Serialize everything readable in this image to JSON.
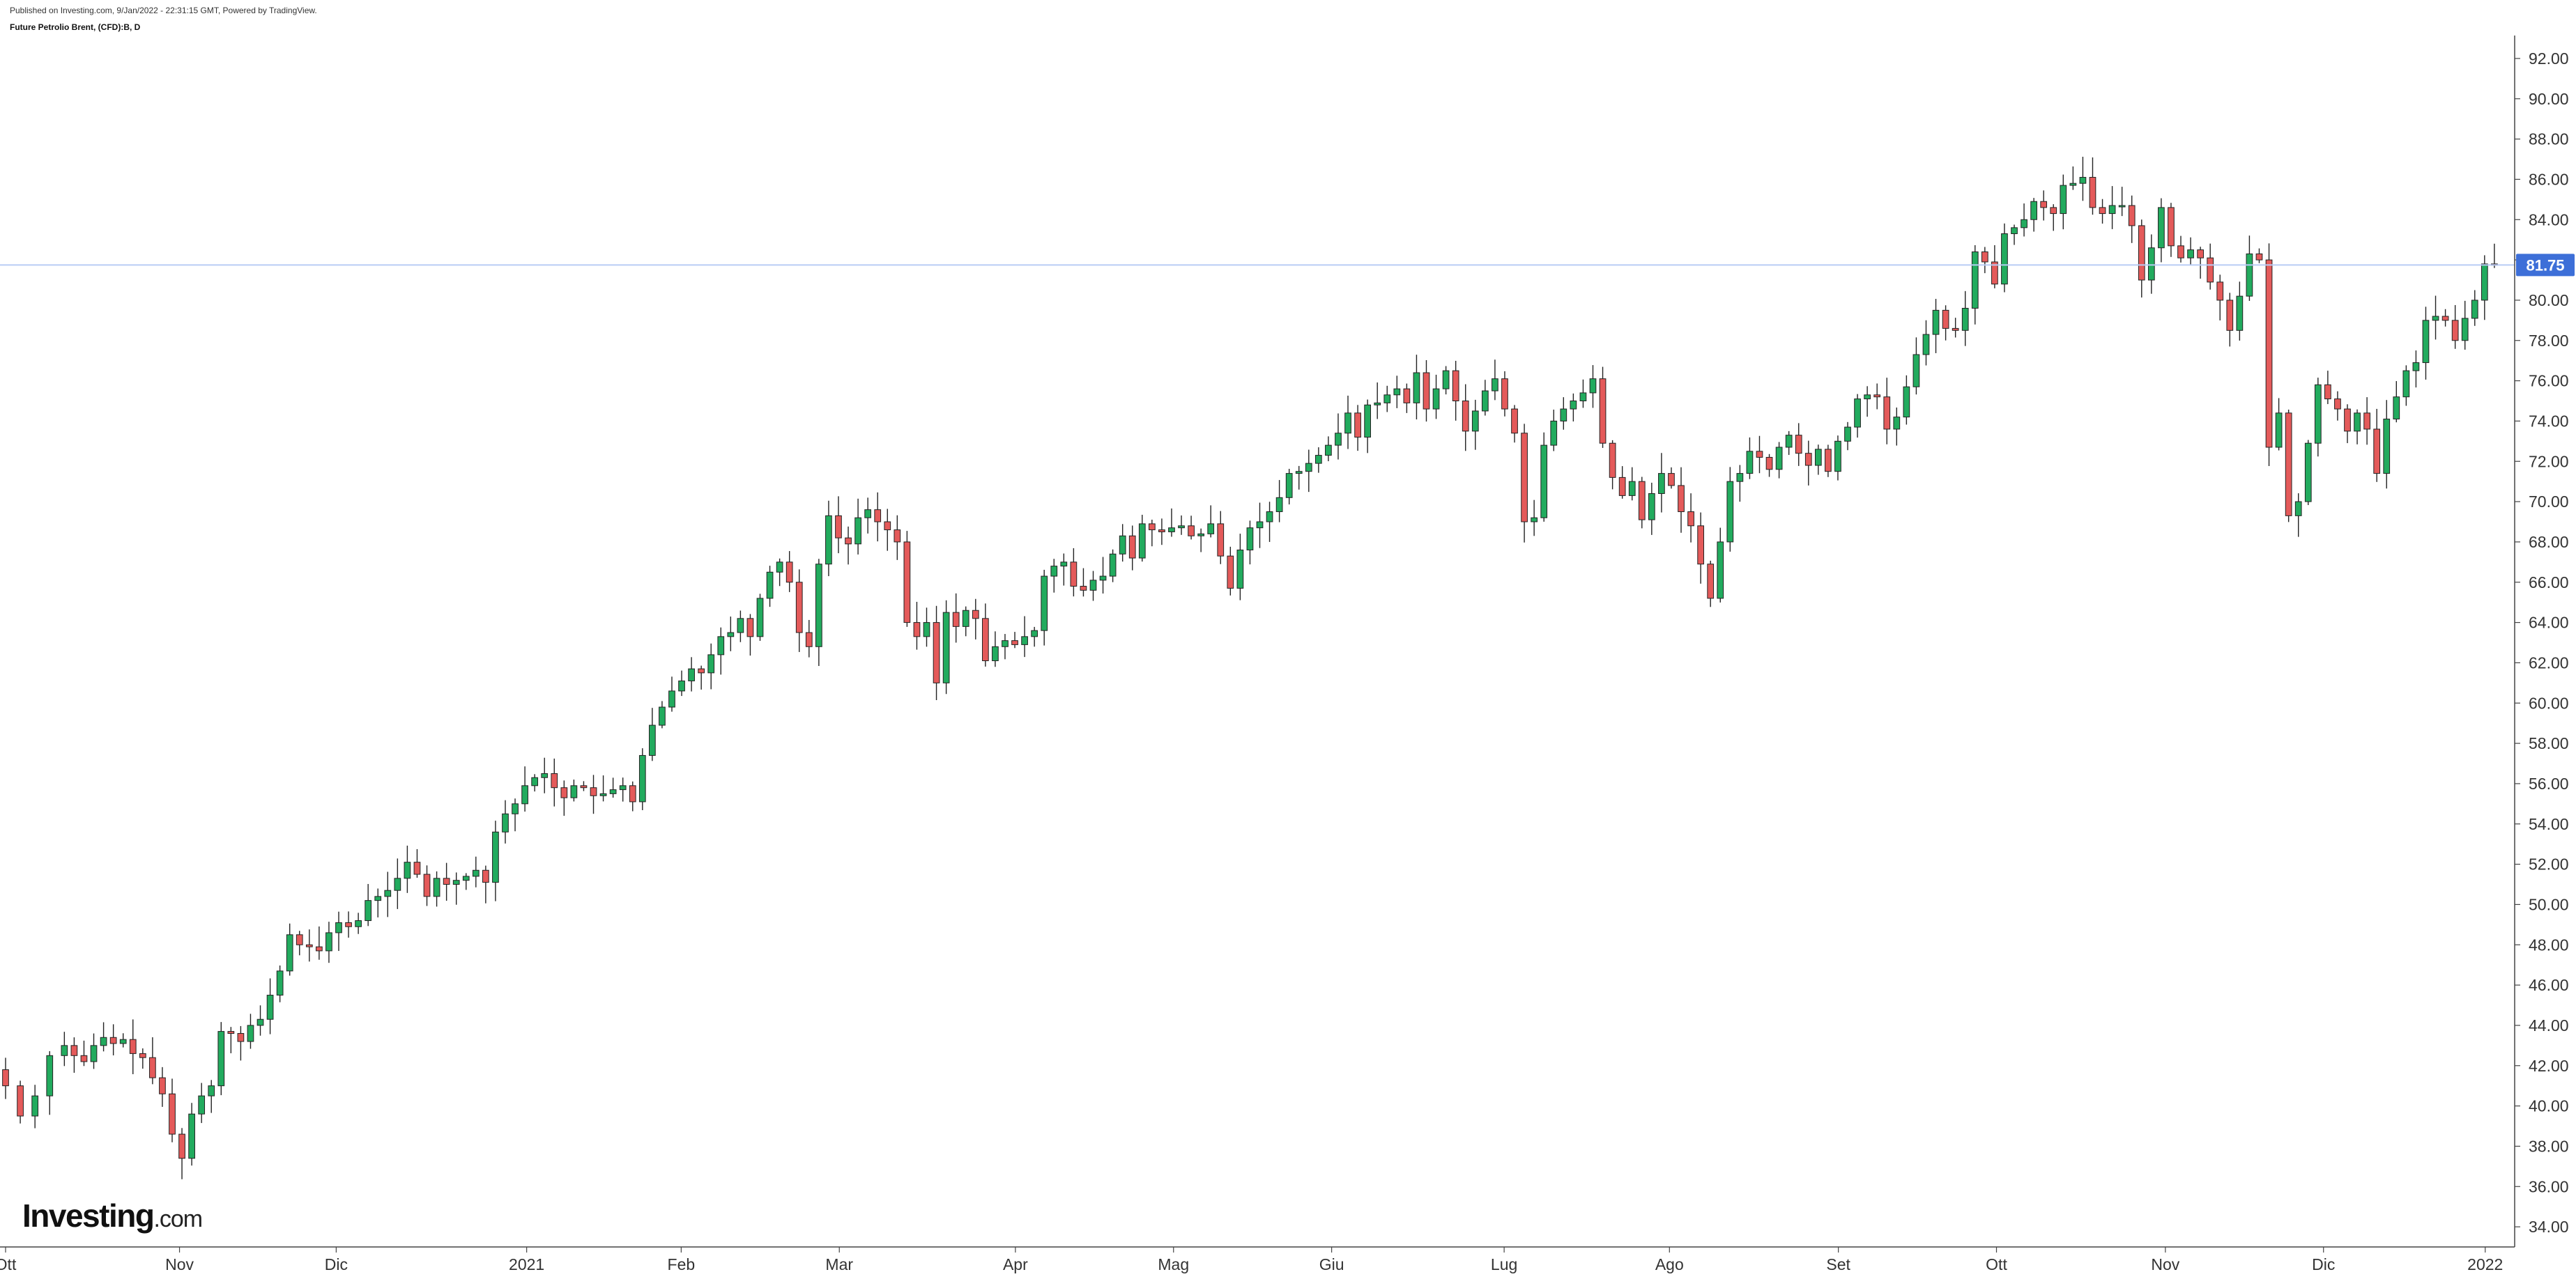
{
  "header": {
    "published": "Published on Investing.com, 9/Jan/2022 - 22:31:15 GMT, Powered by TradingView.",
    "symbol": "Future Petrolio Brent, (CFD):B, D"
  },
  "logo": {
    "brand": "Investing",
    "suffix": ".com"
  },
  "colors": {
    "up": "#22ab5e",
    "down": "#e45a5a",
    "wick": "#222222",
    "price_line": "#b9ccf5",
    "price_label": "#3d6fd8"
  },
  "chart_data": {
    "type": "candlestick",
    "title": "",
    "xlabel": "",
    "ylabel": "",
    "ylim": [
      33.0,
      93.0
    ],
    "yticks": [
      "34.00",
      "36.00",
      "38.00",
      "40.00",
      "42.00",
      "44.00",
      "46.00",
      "48.00",
      "50.00",
      "52.00",
      "54.00",
      "56.00",
      "58.00",
      "60.00",
      "62.00",
      "64.00",
      "66.00",
      "68.00",
      "70.00",
      "72.00",
      "74.00",
      "76.00",
      "78.00",
      "80.00",
      "82.00",
      "84.00",
      "86.00",
      "88.00",
      "90.00",
      "92.00"
    ],
    "xticks": [
      "Ott",
      "Nov",
      "Dic",
      "2021",
      "Feb",
      "Mar",
      "Apr",
      "Mag",
      "Giu",
      "Lug",
      "Ago",
      "Set",
      "Ott",
      "Nov",
      "Dic",
      "2022"
    ],
    "current_price": {
      "value": 81.75,
      "label": "81.75"
    },
    "series": [
      {
        "values": [
          [
            -3.0,
            41.0
          ],
          [
            -1.5,
            39.5
          ],
          [
            0.0,
            40.5
          ],
          [
            1.5,
            42.5
          ],
          [
            3.0,
            43.0
          ],
          [
            4.0,
            42.5
          ],
          [
            5.0,
            42.2
          ],
          [
            6.0,
            43.0
          ],
          [
            7.0,
            43.4
          ],
          [
            8.0,
            43.1
          ],
          [
            9.0,
            43.3
          ],
          [
            10.0,
            42.6
          ],
          [
            11.0,
            42.4
          ],
          [
            12.0,
            41.4
          ],
          [
            13.0,
            40.6
          ],
          [
            14.0,
            38.6
          ],
          [
            15.0,
            37.4
          ],
          [
            16.0,
            39.6
          ],
          [
            17.0,
            40.5
          ],
          [
            18.0,
            41.0
          ],
          [
            19.0,
            43.7
          ],
          [
            20.0,
            43.6
          ],
          [
            21.0,
            43.2
          ],
          [
            22.0,
            44.0
          ],
          [
            23.0,
            44.3
          ],
          [
            24.0,
            45.5
          ],
          [
            25.0,
            46.7
          ],
          [
            26.0,
            48.5
          ],
          [
            27.0,
            48.0
          ],
          [
            28.0,
            47.9
          ],
          [
            29.0,
            47.7
          ],
          [
            30.0,
            48.6
          ],
          [
            31.0,
            49.1
          ],
          [
            32.0,
            48.9
          ],
          [
            33.0,
            49.2
          ],
          [
            34.0,
            50.2
          ],
          [
            35.0,
            50.4
          ],
          [
            36.0,
            50.7
          ],
          [
            37.0,
            51.3
          ],
          [
            38.0,
            52.1
          ],
          [
            39.0,
            51.5
          ],
          [
            40.0,
            50.4
          ],
          [
            41.0,
            51.3
          ],
          [
            42.0,
            51.0
          ],
          [
            43.0,
            51.2
          ],
          [
            44.0,
            51.4
          ],
          [
            45.0,
            51.7
          ],
          [
            46.0,
            51.1
          ],
          [
            47.0,
            53.6
          ],
          [
            48.0,
            54.5
          ],
          [
            49.0,
            55.0
          ],
          [
            50.0,
            55.9
          ],
          [
            51.0,
            56.3
          ],
          [
            52.0,
            56.5
          ],
          [
            53.0,
            55.8
          ],
          [
            54.0,
            55.3
          ],
          [
            55.0,
            55.9
          ],
          [
            56.0,
            55.8
          ],
          [
            57.0,
            55.4
          ],
          [
            58.0,
            55.5
          ],
          [
            59.0,
            55.7
          ],
          [
            60.0,
            55.9
          ],
          [
            61.0,
            55.1
          ],
          [
            62.0,
            57.4
          ],
          [
            63.0,
            58.9
          ],
          [
            64.0,
            59.8
          ],
          [
            65.0,
            60.6
          ],
          [
            66.0,
            61.1
          ],
          [
            67.0,
            61.7
          ],
          [
            68.0,
            61.5
          ],
          [
            69.0,
            62.4
          ],
          [
            70.0,
            63.3
          ],
          [
            71.0,
            63.5
          ],
          [
            72.0,
            64.2
          ],
          [
            73.0,
            63.3
          ],
          [
            74.0,
            65.2
          ],
          [
            75.0,
            66.5
          ],
          [
            76.0,
            67.0
          ],
          [
            77.0,
            66.0
          ],
          [
            78.0,
            63.5
          ],
          [
            79.0,
            62.8
          ],
          [
            80.0,
            66.9
          ],
          [
            81.0,
            69.3
          ],
          [
            82.0,
            68.2
          ],
          [
            83.0,
            67.9
          ],
          [
            84.0,
            69.2
          ],
          [
            85.0,
            69.6
          ],
          [
            86.0,
            69.0
          ],
          [
            87.0,
            68.6
          ],
          [
            88.0,
            68.0
          ],
          [
            89.0,
            64.0
          ],
          [
            90.0,
            63.3
          ],
          [
            91.0,
            64.0
          ],
          [
            92.0,
            61.0
          ],
          [
            93.0,
            64.5
          ],
          [
            94.0,
            63.8
          ],
          [
            95.0,
            64.6
          ],
          [
            96.0,
            64.2
          ],
          [
            97.0,
            62.1
          ],
          [
            98.0,
            62.8
          ],
          [
            99.0,
            63.1
          ],
          [
            100.0,
            62.9
          ],
          [
            101.0,
            63.3
          ],
          [
            102.0,
            63.6
          ],
          [
            103.0,
            66.3
          ],
          [
            104.0,
            66.8
          ],
          [
            105.0,
            67.0
          ],
          [
            106.0,
            65.8
          ],
          [
            107.0,
            65.6
          ],
          [
            108.0,
            66.1
          ],
          [
            109.0,
            66.3
          ],
          [
            110.0,
            67.4
          ],
          [
            111.0,
            68.3
          ],
          [
            112.0,
            67.2
          ],
          [
            113.0,
            68.9
          ],
          [
            114.0,
            68.6
          ],
          [
            115.0,
            68.5
          ],
          [
            116.0,
            68.7
          ],
          [
            117.0,
            68.8
          ],
          [
            118.0,
            68.3
          ],
          [
            119.0,
            68.4
          ],
          [
            120.0,
            68.9
          ],
          [
            121.0,
            67.3
          ],
          [
            122.0,
            65.7
          ],
          [
            123.0,
            67.6
          ],
          [
            124.0,
            68.7
          ],
          [
            125.0,
            69.0
          ],
          [
            126.0,
            69.5
          ],
          [
            127.0,
            70.2
          ],
          [
            128.0,
            71.4
          ],
          [
            129.0,
            71.5
          ],
          [
            130.0,
            71.9
          ],
          [
            131.0,
            72.3
          ],
          [
            132.0,
            72.8
          ],
          [
            133.0,
            73.4
          ],
          [
            134.0,
            74.4
          ],
          [
            135.0,
            73.2
          ],
          [
            136.0,
            74.8
          ],
          [
            137.0,
            74.9
          ],
          [
            138.0,
            75.3
          ],
          [
            139.0,
            75.6
          ],
          [
            140.0,
            74.9
          ],
          [
            141.0,
            76.4
          ],
          [
            142.0,
            74.6
          ],
          [
            143.0,
            75.6
          ],
          [
            144.0,
            76.5
          ],
          [
            145.0,
            75.0
          ],
          [
            146.0,
            73.5
          ],
          [
            147.0,
            74.5
          ],
          [
            148.0,
            75.5
          ],
          [
            149.0,
            76.1
          ],
          [
            150.0,
            74.6
          ],
          [
            151.0,
            73.4
          ],
          [
            152.0,
            69.0
          ],
          [
            153.0,
            69.2
          ],
          [
            154.0,
            72.8
          ],
          [
            155.0,
            74.0
          ],
          [
            156.0,
            74.6
          ],
          [
            157.0,
            75.0
          ],
          [
            158.0,
            75.4
          ],
          [
            159.0,
            76.1
          ],
          [
            160.0,
            72.9
          ],
          [
            161.0,
            71.2
          ],
          [
            162.0,
            70.3
          ],
          [
            163.0,
            71.0
          ],
          [
            164.0,
            69.1
          ],
          [
            165.0,
            70.4
          ],
          [
            166.0,
            71.4
          ],
          [
            167.0,
            70.8
          ],
          [
            168.0,
            69.5
          ],
          [
            169.0,
            68.8
          ],
          [
            170.0,
            66.9
          ],
          [
            171.0,
            65.2
          ],
          [
            172.0,
            68.0
          ],
          [
            173.0,
            71.0
          ],
          [
            174.0,
            71.4
          ],
          [
            175.0,
            72.5
          ],
          [
            176.0,
            72.2
          ],
          [
            177.0,
            71.6
          ],
          [
            178.0,
            72.7
          ],
          [
            179.0,
            73.3
          ],
          [
            180.0,
            72.4
          ],
          [
            181.0,
            71.8
          ],
          [
            182.0,
            72.6
          ],
          [
            183.0,
            71.5
          ],
          [
            184.0,
            73.0
          ],
          [
            185.0,
            73.7
          ],
          [
            186.0,
            75.1
          ],
          [
            187.0,
            75.3
          ],
          [
            188.0,
            75.2
          ],
          [
            189.0,
            73.6
          ],
          [
            190.0,
            74.2
          ],
          [
            191.0,
            75.7
          ],
          [
            192.0,
            77.3
          ],
          [
            193.0,
            78.3
          ],
          [
            194.0,
            79.5
          ],
          [
            195.0,
            78.6
          ],
          [
            196.0,
            78.5
          ],
          [
            197.0,
            79.6
          ],
          [
            198.0,
            82.4
          ],
          [
            199.0,
            81.9
          ],
          [
            200.0,
            80.8
          ],
          [
            201.0,
            83.3
          ],
          [
            202.0,
            83.6
          ],
          [
            203.0,
            84.0
          ],
          [
            204.0,
            84.9
          ],
          [
            205.0,
            84.6
          ],
          [
            206.0,
            84.3
          ],
          [
            207.0,
            85.7
          ],
          [
            208.0,
            85.8
          ],
          [
            209.0,
            86.1
          ],
          [
            210.0,
            84.6
          ],
          [
            211.0,
            84.3
          ],
          [
            212.0,
            84.7
          ],
          [
            213.0,
            84.7
          ],
          [
            214.0,
            83.7
          ],
          [
            215.0,
            81.0
          ],
          [
            216.0,
            82.6
          ],
          [
            217.0,
            84.6
          ],
          [
            218.0,
            82.7
          ],
          [
            219.0,
            82.1
          ],
          [
            220.0,
            82.5
          ],
          [
            221.0,
            82.1
          ],
          [
            222.0,
            80.9
          ],
          [
            223.0,
            80.0
          ],
          [
            224.0,
            78.5
          ],
          [
            225.0,
            80.2
          ],
          [
            226.0,
            82.3
          ],
          [
            227.0,
            82.0
          ],
          [
            228.0,
            72.7
          ],
          [
            229.0,
            74.4
          ],
          [
            230.0,
            69.3
          ],
          [
            231.0,
            70.0
          ],
          [
            232.0,
            72.9
          ],
          [
            233.0,
            75.8
          ],
          [
            234.0,
            75.1
          ],
          [
            235.0,
            74.6
          ],
          [
            236.0,
            73.5
          ],
          [
            237.0,
            74.4
          ],
          [
            238.0,
            73.6
          ],
          [
            239.0,
            71.4
          ],
          [
            240.0,
            74.1
          ],
          [
            241.0,
            75.2
          ],
          [
            242.0,
            76.5
          ],
          [
            243.0,
            76.9
          ],
          [
            244.0,
            79.0
          ],
          [
            245.0,
            79.2
          ],
          [
            246.0,
            79.0
          ],
          [
            247.0,
            78.0
          ],
          [
            248.0,
            79.1
          ],
          [
            249.0,
            80.0
          ],
          [
            250.0,
            81.8
          ],
          [
            251.0,
            81.75
          ]
        ]
      }
    ]
  }
}
